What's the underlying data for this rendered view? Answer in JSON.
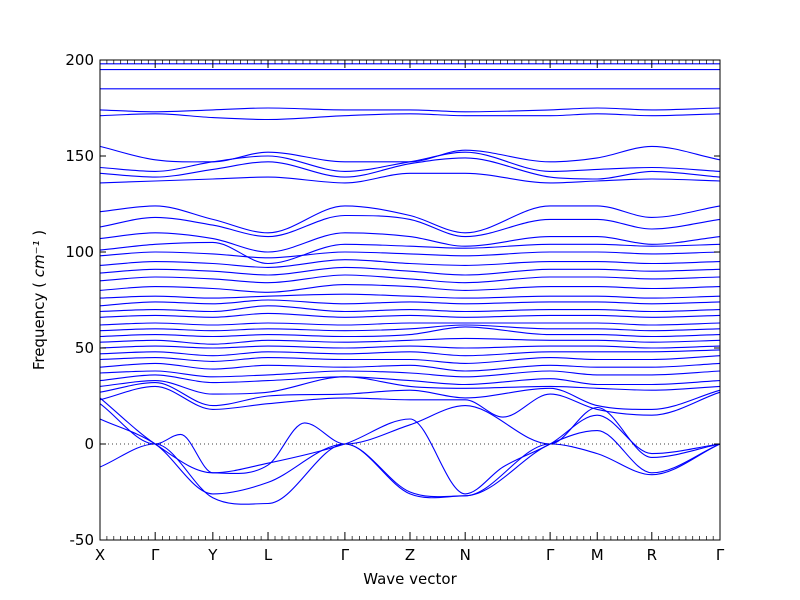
{
  "chart_data": {
    "type": "line",
    "title": "",
    "xlabel": "Wave vector",
    "ylabel": "Frequency",
    "ylabel_unit": "cm⁻¹",
    "ylim": [
      -50,
      200
    ],
    "yticks": [
      -50,
      0,
      50,
      100,
      150,
      200
    ],
    "x_range": [
      0,
      1
    ],
    "special_points": [
      {
        "label": "X",
        "x": 0.0
      },
      {
        "label": "Γ",
        "x": 0.089
      },
      {
        "label": "Y",
        "x": 0.182
      },
      {
        "label": "L",
        "x": 0.271
      },
      {
        "label": "Γ",
        "x": 0.395
      },
      {
        "label": "Z",
        "x": 0.5
      },
      {
        "label": "N",
        "x": 0.589
      },
      {
        "label": "Γ",
        "x": 0.726
      },
      {
        "label": "M",
        "x": 0.802
      },
      {
        "label": "R",
        "x": 0.89
      },
      {
        "label": "Γ",
        "x": 1.0
      }
    ],
    "zero_line": {
      "y": 0,
      "style": "dotted"
    },
    "series_color": "#0000ff",
    "series": [
      {
        "x": [
          0,
          0.089,
          0.182,
          0.271,
          0.395,
          0.5,
          0.589,
          0.726,
          0.802,
          0.89,
          1.0
        ],
        "y": [
          -12,
          0,
          -28,
          -31,
          0,
          -25,
          -27,
          0,
          7,
          -15,
          0
        ]
      },
      {
        "x": [
          0,
          0.089,
          0.182,
          0.271,
          0.395,
          0.5,
          0.589,
          0.726,
          0.802,
          0.89,
          1.0
        ],
        "y": [
          13,
          0,
          -26,
          -20,
          0,
          -26,
          -27,
          0,
          -5,
          -16,
          0
        ]
      },
      {
        "x": [
          0,
          0.089,
          0.13,
          0.182,
          0.271,
          0.33,
          0.395,
          0.5,
          0.589,
          0.726,
          0.802,
          0.89,
          1.0
        ],
        "y": [
          21,
          0,
          5,
          -15,
          -11,
          11,
          0,
          10,
          20,
          0,
          19,
          -7,
          0
        ]
      },
      {
        "x": [
          0,
          0.089,
          0.182,
          0.271,
          0.395,
          0.5,
          0.589,
          0.65,
          0.726,
          0.802,
          0.89,
          1.0
        ],
        "y": [
          24,
          0,
          -15,
          -10,
          0,
          13,
          -26,
          -12,
          0,
          15,
          -5,
          0
        ]
      },
      {
        "x": [
          0,
          0.089,
          0.182,
          0.271,
          0.395,
          0.5,
          0.589,
          0.65,
          0.726,
          0.802,
          0.89,
          1.0
        ],
        "y": [
          23,
          30,
          18,
          21,
          24,
          23,
          23,
          14,
          26,
          18,
          15,
          27
        ]
      },
      {
        "x": [
          0,
          0.089,
          0.182,
          0.271,
          0.395,
          0.5,
          0.589,
          0.726,
          0.802,
          0.89,
          1.0
        ],
        "y": [
          27,
          32,
          20,
          25,
          26,
          28,
          24,
          29,
          20,
          18,
          28
        ]
      },
      {
        "x": [
          0,
          0.089,
          0.182,
          0.271,
          0.395,
          0.5,
          0.589,
          0.726,
          0.802,
          0.89,
          1.0
        ],
        "y": [
          30,
          33,
          26,
          27,
          35,
          30,
          29,
          30,
          29,
          28,
          30
        ]
      },
      {
        "x": [
          0,
          0.089,
          0.182,
          0.271,
          0.395,
          0.5,
          0.589,
          0.726,
          0.802,
          0.89,
          1.0
        ],
        "y": [
          33,
          36,
          32,
          33,
          35,
          33,
          31,
          34,
          31,
          31,
          33
        ]
      },
      {
        "x": [
          0,
          0.089,
          0.182,
          0.271,
          0.395,
          0.5,
          0.589,
          0.726,
          0.802,
          0.89,
          1.0
        ],
        "y": [
          37,
          38,
          35,
          36,
          38,
          37,
          35,
          38,
          36,
          36,
          38
        ]
      },
      {
        "x": [
          0,
          0.089,
          0.182,
          0.271,
          0.395,
          0.5,
          0.589,
          0.726,
          0.802,
          0.89,
          1.0
        ],
        "y": [
          40,
          42,
          39,
          41,
          40,
          41,
          38,
          41,
          40,
          40,
          42
        ]
      },
      {
        "x": [
          0,
          0.089,
          0.182,
          0.271,
          0.395,
          0.5,
          0.589,
          0.726,
          0.802,
          0.89,
          1.0
        ],
        "y": [
          44,
          45,
          43,
          45,
          44,
          44,
          42,
          45,
          44,
          44,
          46
        ]
      },
      {
        "x": [
          0,
          0.089,
          0.182,
          0.271,
          0.395,
          0.5,
          0.589,
          0.726,
          0.802,
          0.89,
          1.0
        ],
        "y": [
          47,
          48,
          46,
          48,
          47,
          48,
          46,
          48,
          48,
          48,
          49
        ]
      },
      {
        "x": [
          0,
          0.089,
          0.182,
          0.271,
          0.395,
          0.5,
          0.589,
          0.726,
          0.802,
          0.89,
          1.0
        ],
        "y": [
          50,
          51,
          50,
          51,
          50,
          51,
          50,
          51,
          51,
          50,
          51
        ]
      },
      {
        "x": [
          0,
          0.089,
          0.182,
          0.271,
          0.395,
          0.5,
          0.589,
          0.726,
          0.802,
          0.89,
          1.0
        ],
        "y": [
          53,
          54,
          52,
          54,
          53,
          54,
          55,
          54,
          54,
          53,
          54
        ]
      },
      {
        "x": [
          0,
          0.089,
          0.182,
          0.271,
          0.395,
          0.5,
          0.589,
          0.726,
          0.802,
          0.89,
          1.0
        ],
        "y": [
          56,
          57,
          56,
          57,
          56,
          57,
          61,
          57,
          57,
          56,
          57
        ]
      },
      {
        "x": [
          0,
          0.089,
          0.182,
          0.271,
          0.395,
          0.5,
          0.589,
          0.726,
          0.802,
          0.89,
          1.0
        ],
        "y": [
          59,
          60,
          59,
          60,
          59,
          60,
          62,
          60,
          60,
          59,
          60
        ]
      },
      {
        "x": [
          0,
          0.089,
          0.182,
          0.271,
          0.395,
          0.5,
          0.589,
          0.726,
          0.802,
          0.89,
          1.0
        ],
        "y": [
          62,
          63,
          62,
          63,
          62,
          63,
          63,
          63,
          63,
          62,
          63
        ]
      },
      {
        "x": [
          0,
          0.089,
          0.182,
          0.271,
          0.395,
          0.5,
          0.589,
          0.726,
          0.802,
          0.89,
          1.0
        ],
        "y": [
          66,
          67,
          66,
          68,
          66,
          67,
          66,
          67,
          67,
          66,
          67
        ]
      },
      {
        "x": [
          0,
          0.089,
          0.182,
          0.271,
          0.395,
          0.5,
          0.589,
          0.726,
          0.802,
          0.89,
          1.0
        ],
        "y": [
          69,
          70,
          69,
          72,
          69,
          70,
          69,
          70,
          70,
          69,
          70
        ]
      },
      {
        "x": [
          0,
          0.089,
          0.182,
          0.271,
          0.395,
          0.5,
          0.589,
          0.726,
          0.802,
          0.89,
          1.0
        ],
        "y": [
          72,
          74,
          73,
          75,
          73,
          74,
          73,
          74,
          74,
          73,
          74
        ]
      },
      {
        "x": [
          0,
          0.089,
          0.182,
          0.271,
          0.395,
          0.5,
          0.589,
          0.726,
          0.802,
          0.89,
          1.0
        ],
        "y": [
          76,
          77,
          76,
          77,
          78,
          77,
          76,
          77,
          77,
          76,
          77
        ]
      },
      {
        "x": [
          0,
          0.089,
          0.182,
          0.271,
          0.395,
          0.5,
          0.589,
          0.726,
          0.802,
          0.89,
          1.0
        ],
        "y": [
          80,
          82,
          81,
          79,
          83,
          82,
          80,
          82,
          82,
          81,
          82
        ]
      },
      {
        "x": [
          0,
          0.089,
          0.182,
          0.271,
          0.395,
          0.5,
          0.589,
          0.726,
          0.802,
          0.89,
          1.0
        ],
        "y": [
          85,
          87,
          86,
          84,
          88,
          86,
          84,
          87,
          87,
          86,
          87
        ]
      },
      {
        "x": [
          0,
          0.089,
          0.182,
          0.271,
          0.395,
          0.5,
          0.589,
          0.726,
          0.802,
          0.89,
          1.0
        ],
        "y": [
          89,
          91,
          90,
          88,
          92,
          90,
          88,
          91,
          91,
          90,
          91
        ]
      },
      {
        "x": [
          0,
          0.089,
          0.182,
          0.271,
          0.395,
          0.5,
          0.589,
          0.726,
          0.802,
          0.89,
          1.0
        ],
        "y": [
          93,
          95,
          94,
          92,
          96,
          94,
          93,
          95,
          95,
          94,
          95
        ]
      },
      {
        "x": [
          0,
          0.089,
          0.182,
          0.271,
          0.395,
          0.5,
          0.589,
          0.726,
          0.802,
          0.89,
          1.0
        ],
        "y": [
          98,
          100,
          99,
          97,
          100,
          99,
          98,
          100,
          100,
          99,
          100
        ]
      },
      {
        "x": [
          0,
          0.089,
          0.182,
          0.271,
          0.395,
          0.5,
          0.589,
          0.726,
          0.802,
          0.89,
          1.0
        ],
        "y": [
          101,
          104,
          105,
          94,
          104,
          103,
          102,
          104,
          104,
          103,
          104
        ]
      },
      {
        "x": [
          0,
          0.089,
          0.182,
          0.271,
          0.395,
          0.5,
          0.589,
          0.726,
          0.802,
          0.89,
          1.0
        ],
        "y": [
          107,
          110,
          107,
          100,
          110,
          108,
          103,
          108,
          108,
          104,
          108
        ]
      },
      {
        "x": [
          0,
          0.089,
          0.182,
          0.271,
          0.395,
          0.5,
          0.589,
          0.726,
          0.802,
          0.89,
          1.0
        ],
        "y": [
          113,
          118,
          114,
          108,
          119,
          117,
          108,
          117,
          117,
          112,
          117
        ]
      },
      {
        "x": [
          0,
          0.089,
          0.182,
          0.271,
          0.395,
          0.5,
          0.589,
          0.726,
          0.802,
          0.89,
          1.0
        ],
        "y": [
          121,
          124,
          117,
          110,
          124,
          119,
          110,
          124,
          124,
          118,
          124
        ]
      },
      {
        "x": [
          0,
          0.089,
          0.182,
          0.271,
          0.395,
          0.5,
          0.589,
          0.726,
          0.802,
          0.89,
          1.0
        ],
        "y": [
          136,
          137,
          138,
          139,
          136,
          141,
          141,
          136,
          137,
          138,
          137
        ]
      },
      {
        "x": [
          0,
          0.089,
          0.182,
          0.271,
          0.395,
          0.5,
          0.589,
          0.726,
          0.802,
          0.89,
          1.0
        ],
        "y": [
          141,
          139,
          143,
          147,
          139,
          146,
          149,
          139,
          138,
          142,
          139
        ]
      },
      {
        "x": [
          0,
          0.089,
          0.182,
          0.271,
          0.395,
          0.5,
          0.589,
          0.726,
          0.802,
          0.89,
          1.0
        ],
        "y": [
          144,
          142,
          147,
          150,
          142,
          147,
          152,
          142,
          143,
          144,
          142
        ]
      },
      {
        "x": [
          0,
          0.089,
          0.182,
          0.271,
          0.395,
          0.5,
          0.589,
          0.726,
          0.802,
          0.89,
          1.0
        ],
        "y": [
          155,
          148,
          147,
          152,
          147,
          147,
          153,
          147,
          149,
          155,
          148
        ]
      },
      {
        "x": [
          0,
          0.089,
          0.182,
          0.271,
          0.395,
          0.5,
          0.589,
          0.726,
          0.802,
          0.89,
          1.0
        ],
        "y": [
          171,
          172,
          170,
          169,
          171,
          172,
          171,
          171,
          172,
          171,
          172
        ]
      },
      {
        "x": [
          0,
          0.089,
          0.182,
          0.271,
          0.395,
          0.5,
          0.589,
          0.726,
          0.802,
          0.89,
          1.0
        ],
        "y": [
          174,
          173,
          174,
          175,
          174,
          174,
          173,
          174,
          175,
          174,
          175
        ]
      },
      {
        "x": [
          0,
          0.089,
          0.182,
          0.271,
          0.395,
          0.5,
          0.589,
          0.726,
          0.802,
          0.89,
          1.0
        ],
        "y": [
          185,
          185,
          185,
          185,
          185,
          185,
          185,
          185,
          185,
          185,
          185
        ]
      },
      {
        "x": [
          0,
          0.089,
          0.182,
          0.271,
          0.395,
          0.5,
          0.589,
          0.726,
          0.802,
          0.89,
          1.0
        ],
        "y": [
          195,
          195,
          195,
          195,
          195,
          195,
          195,
          195,
          195,
          195,
          195
        ]
      },
      {
        "x": [
          0,
          0.089,
          0.182,
          0.271,
          0.395,
          0.5,
          0.589,
          0.726,
          0.802,
          0.89,
          1.0
        ],
        "y": [
          198,
          198,
          198,
          198,
          198,
          198,
          198,
          198,
          198,
          198,
          198
        ]
      }
    ],
    "grid": false,
    "legend": "none"
  }
}
